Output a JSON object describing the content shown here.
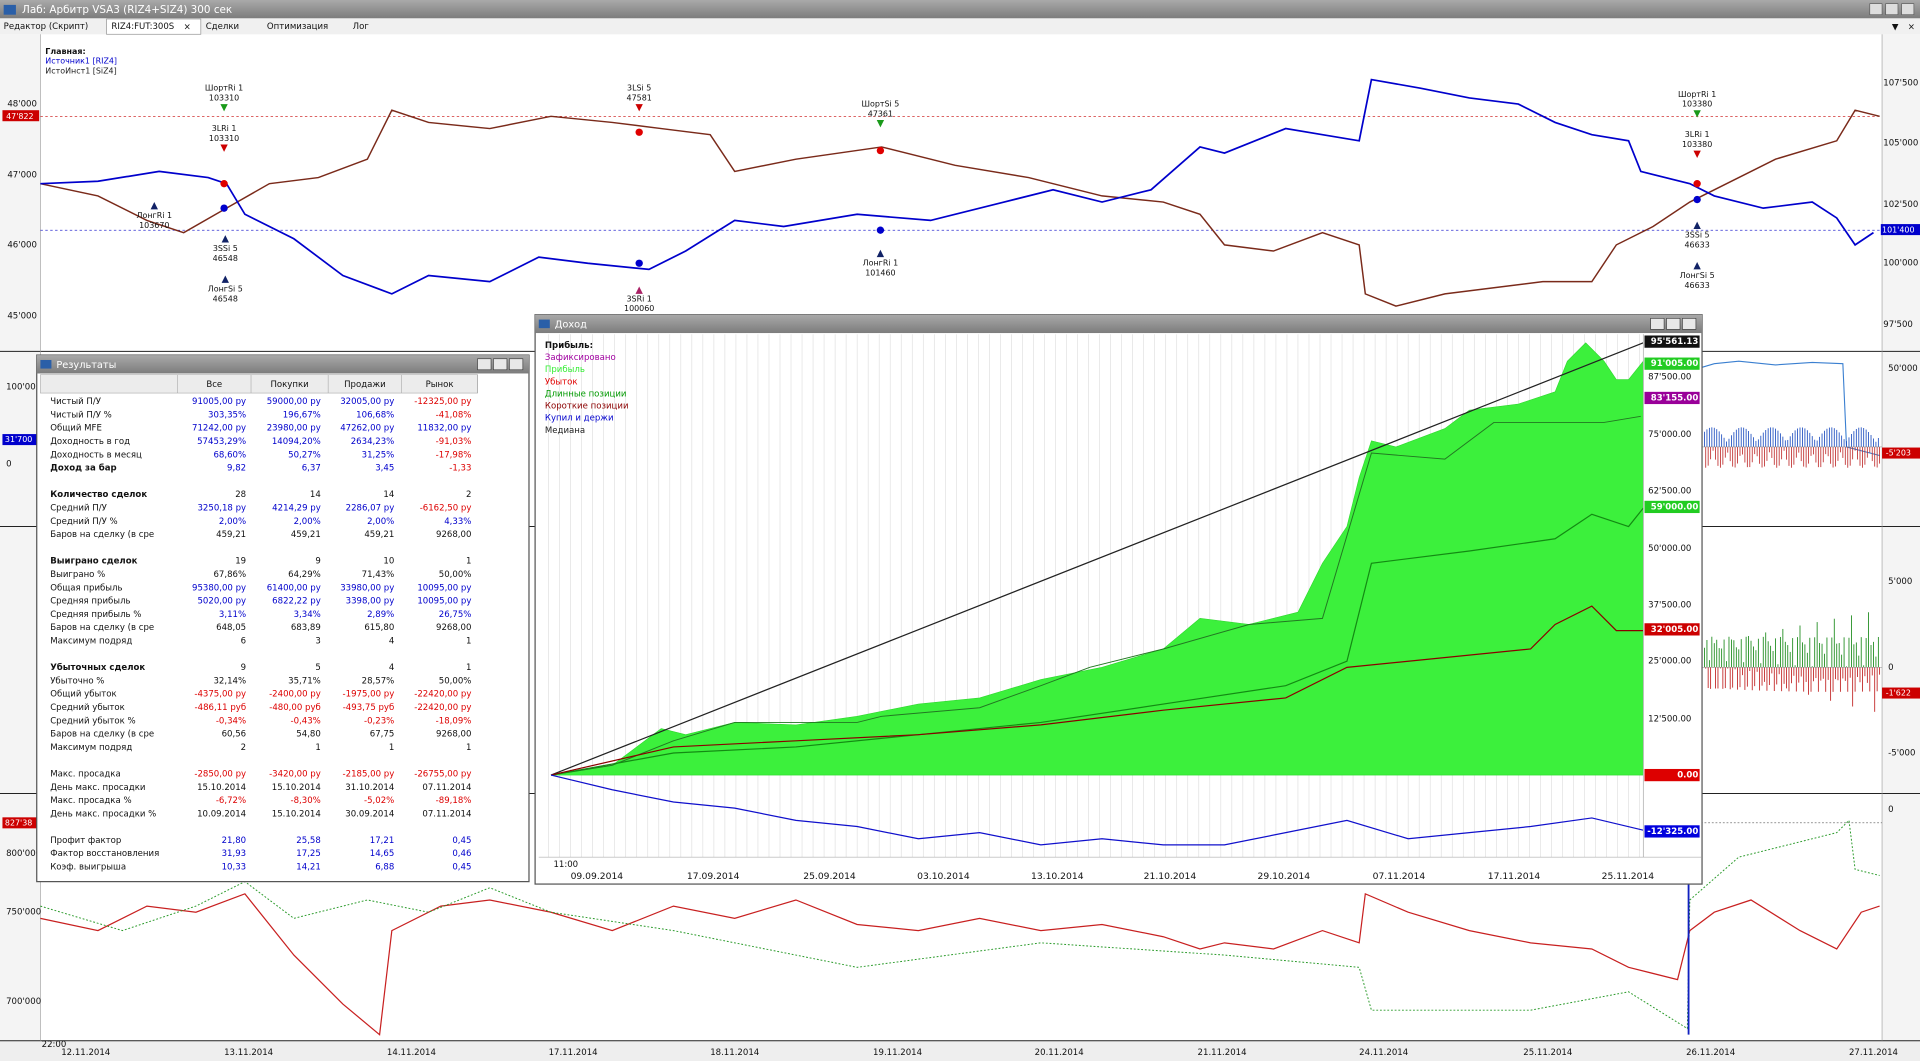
{
  "window": {
    "title": "Лаб: Арбитр VSA3 (RIZ4+SIZ4) 300 сек",
    "tabs": [
      "Редактор (Скрипт)",
      "RIZ4:FUT:300S",
      "Сделки",
      "Оптимизация",
      "Лог"
    ]
  },
  "main_chart": {
    "legend_heading": "Главная:",
    "legend": [
      {
        "label": "Источник1 [RIZ4]",
        "color": "#0000cc"
      },
      {
        "label": "ИстоИнст1 [SiZ4]",
        "color": "#222222"
      }
    ],
    "left_axis": [
      "48'000",
      "47'000",
      "46'000",
      "45'000"
    ],
    "left_marker": "47'822",
    "right_axis": [
      "107'500",
      "105'000",
      "102'500",
      "100'000",
      "97'500"
    ],
    "right_marker": "101'400",
    "annotations": [
      {
        "label": "ШортRi 1",
        "price": "103310"
      },
      {
        "label": "3LRi 1",
        "price": "103310"
      },
      {
        "label": "ЛонгRi 1",
        "price": "103670"
      },
      {
        "label": "3SSi 5",
        "price": "46548"
      },
      {
        "label": "ЛонгSi 5",
        "price": "46548"
      },
      {
        "label": "3LSi 5",
        "price": "47581"
      },
      {
        "label": "3SRi 1",
        "price": "100060"
      },
      {
        "label": "ШортSi 5",
        "price": "47361"
      },
      {
        "label": "ЛонгRi 1",
        "price": "101460"
      },
      {
        "label": "ШортRi 1",
        "price": "103380"
      },
      {
        "label": "3LRi 1",
        "price": "103380"
      },
      {
        "label": "3SSi 5",
        "price": "46633"
      },
      {
        "label": "ЛонгSi 5",
        "price": "46633"
      }
    ]
  },
  "lower_panels": {
    "right_labels": [
      "50'000",
      "5'000",
      "0",
      "-5'000",
      "0"
    ],
    "right_markers": [
      "-5'203",
      "-1'622"
    ],
    "left_labels": [
      "100'00",
      "0",
      "800'000",
      "750'000",
      "700'000"
    ],
    "left_markers": [
      {
        "label": "31'700",
        "color": "#0000cc"
      },
      {
        "label": "827'38",
        "color": "#cc0000"
      }
    ],
    "time_label": "22:00",
    "dates": [
      "12.11.2014",
      "13.11.2014",
      "14.11.2014",
      "17.11.2014",
      "18.11.2014",
      "19.11.2014",
      "20.11.2014",
      "21.11.2014",
      "24.11.2014",
      "25.11.2014",
      "26.11.2014",
      "27.11.2014"
    ]
  },
  "results": {
    "title": "Результаты",
    "columns": [
      "Все",
      "Покупки",
      "Продажи",
      "Рынок"
    ],
    "sections": [
      [
        {
          "label": "Чистый П/У",
          "color": "blue",
          "cells": [
            "91005,00 ру",
            "59000,00 ру",
            "32005,00 ру",
            "-12325,00 ру"
          ]
        },
        {
          "label": "Чистый П/У %",
          "color": "blue",
          "cells": [
            "303,35%",
            "196,67%",
            "106,68%",
            "-41,08%"
          ]
        },
        {
          "label": "Общий MFE",
          "color": "blue",
          "cells": [
            "71242,00 ру",
            "23980,00 ру",
            "47262,00 ру",
            "11832,00 ру"
          ]
        },
        {
          "label": "Доходность в год",
          "color": "blue",
          "cells": [
            "57453,29%",
            "14094,20%",
            "2634,23%",
            "-91,03%"
          ]
        },
        {
          "label": "Доходность в месяц",
          "color": "blue",
          "cells": [
            "68,60%",
            "50,27%",
            "31,25%",
            "-17,98%"
          ]
        },
        {
          "label": "Доход за бар",
          "color": "blue",
          "bold": true,
          "cells": [
            "9,82",
            "6,37",
            "3,45",
            "-1,33"
          ]
        }
      ],
      [
        {
          "label": "Количество сделок",
          "color": "black",
          "bold": true,
          "cells": [
            "28",
            "14",
            "14",
            "2"
          ]
        },
        {
          "label": "Средний П/У",
          "color": "blue",
          "cells": [
            "3250,18 ру",
            "4214,29 ру",
            "2286,07 ру",
            "-6162,50 ру"
          ]
        },
        {
          "label": "Средний П/У %",
          "color": "blue",
          "cells": [
            "2,00%",
            "2,00%",
            "2,00%",
            "4,33%"
          ]
        },
        {
          "label": "Баров на сделку (в сре",
          "color": "black",
          "cells": [
            "459,21",
            "459,21",
            "459,21",
            "9268,00"
          ]
        }
      ],
      [
        {
          "label": "Выиграно сделок",
          "color": "black",
          "bold": true,
          "cells": [
            "19",
            "9",
            "10",
            "1"
          ]
        },
        {
          "label": "Выиграно %",
          "color": "black",
          "cells": [
            "67,86%",
            "64,29%",
            "71,43%",
            "50,00%"
          ]
        },
        {
          "label": "Общая прибыль",
          "color": "blue",
          "cells": [
            "95380,00 ру",
            "61400,00 ру",
            "33980,00 ру",
            "10095,00 ру"
          ]
        },
        {
          "label": "Средняя прибыль",
          "color": "blue",
          "cells": [
            "5020,00 ру",
            "6822,22 ру",
            "3398,00 ру",
            "10095,00 ру"
          ]
        },
        {
          "label": "Средняя прибыль %",
          "color": "blue",
          "cells": [
            "3,11%",
            "3,34%",
            "2,89%",
            "26,75%"
          ]
        },
        {
          "label": "Баров на сделку (в сре",
          "color": "black",
          "cells": [
            "648,05",
            "683,89",
            "615,80",
            "9268,00"
          ]
        },
        {
          "label": "Максимум подряд",
          "color": "black",
          "cells": [
            "6",
            "3",
            "4",
            "1"
          ]
        }
      ],
      [
        {
          "label": "Убыточных сделок",
          "color": "black",
          "bold": true,
          "cells": [
            "9",
            "5",
            "4",
            "1"
          ]
        },
        {
          "label": "Убыточно %",
          "color": "black",
          "cells": [
            "32,14%",
            "35,71%",
            "28,57%",
            "50,00%"
          ]
        },
        {
          "label": "Общий убыток",
          "color": "blue",
          "cells": [
            "-4375,00 ру",
            "-2400,00 ру",
            "-1975,00 ру",
            "-22420,00 ру"
          ]
        },
        {
          "label": "Средний убыток",
          "color": "blue",
          "cells": [
            "-486,11 руб",
            "-480,00 руб",
            "-493,75 руб",
            "-22420,00 ру"
          ]
        },
        {
          "label": "Средний убыток %",
          "color": "blue",
          "cells": [
            "-0,34%",
            "-0,43%",
            "-0,23%",
            "-18,09%"
          ]
        },
        {
          "label": "Баров на сделку (в сре",
          "color": "black",
          "cells": [
            "60,56",
            "54,80",
            "67,75",
            "9268,00"
          ]
        },
        {
          "label": "Максимум подряд",
          "color": "black",
          "cells": [
            "2",
            "1",
            "1",
            "1"
          ]
        }
      ],
      [
        {
          "label": "Макс. просадка",
          "color": "blue",
          "cells": [
            "-2850,00 ру",
            "-3420,00 ру",
            "-2185,00 ру",
            "-26755,00 ру"
          ]
        },
        {
          "label": "День макс. просадки",
          "color": "black",
          "cells": [
            "15.10.2014",
            "15.10.2014",
            "31.10.2014",
            "07.11.2014"
          ]
        },
        {
          "label": "Макс. просадка %",
          "color": "blue",
          "cells": [
            "-6,72%",
            "-8,30%",
            "-5,02%",
            "-89,18%"
          ]
        },
        {
          "label": "День макс. просадки %",
          "color": "black",
          "cells": [
            "10.09.2014",
            "15.10.2014",
            "30.09.2014",
            "07.11.2014"
          ]
        }
      ],
      [
        {
          "label": "Профит фактор",
          "color": "blue",
          "cells": [
            "21,80",
            "25,58",
            "17,21",
            "0,45"
          ]
        },
        {
          "label": "Фактор восстановления",
          "color": "blue",
          "cells": [
            "31,93",
            "17,25",
            "14,65",
            "0,46"
          ]
        },
        {
          "label": "Коэф. выигрыша",
          "color": "blue",
          "cells": [
            "10,33",
            "14,21",
            "6,88",
            "0,45"
          ]
        }
      ]
    ]
  },
  "income": {
    "title": "Доход",
    "legend_heading": "Прибыль:",
    "legend": [
      {
        "label": "Зафиксировано",
        "color": "#a000a0"
      },
      {
        "label": "Прибыль",
        "color": "#33ee33"
      },
      {
        "label": "Убыток",
        "color": "#e00000"
      },
      {
        "label": "Длинные позиции",
        "color": "#009900"
      },
      {
        "label": "Короткие позиции",
        "color": "#8b0000"
      },
      {
        "label": "Купил и держи",
        "color": "#0000cc"
      },
      {
        "label": "Медиана",
        "color": "#222222"
      }
    ],
    "axis_labels": [
      "87'500.00",
      "75'000.00",
      "62'500.00",
      "50'000.00",
      "37'500.00",
      "25'000.00",
      "12'500.00"
    ],
    "markers": [
      {
        "label": "95'561.13",
        "color": "#111111"
      },
      {
        "label": "91'005.00",
        "color": "#22cc22"
      },
      {
        "label": "83'155.00",
        "color": "#990099"
      },
      {
        "label": "59'000.00",
        "color": "#22cc22"
      },
      {
        "label": "32'005.00",
        "color": "#cc0000"
      },
      {
        "label": "0.00",
        "color": "#dd0000"
      },
      {
        "label": "-12'325.00",
        "color": "#0000dd"
      }
    ],
    "time_label": "11:00",
    "dates": [
      "09.09.2014",
      "17.09.2014",
      "25.09.2014",
      "03.10.2014",
      "13.10.2014",
      "21.10.2014",
      "29.10.2014",
      "07.11.2014",
      "17.11.2014",
      "25.11.2014"
    ]
  }
}
